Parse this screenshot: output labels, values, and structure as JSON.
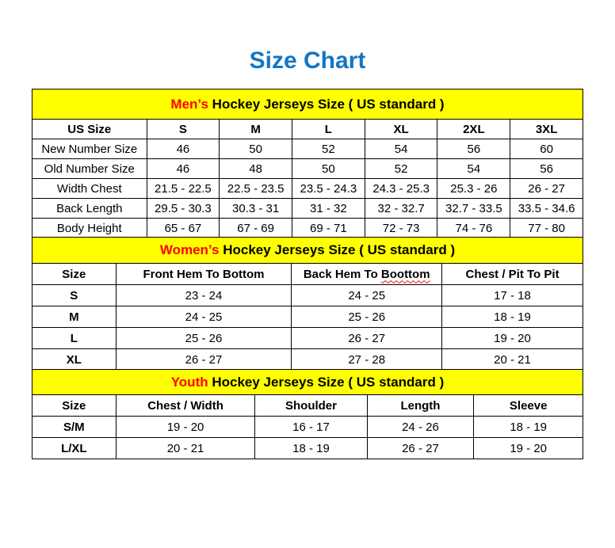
{
  "page_title": "Size Chart",
  "colors": {
    "title_blue": "#1176C5",
    "band_yellow": "#FFFF00",
    "accent_red": "#FF0000",
    "text_black": "#000000"
  },
  "tables": [
    {
      "id": "mens",
      "title_accent": "Men’s",
      "title_rest": " Hockey Jerseys Size ( US standard )",
      "columns": [
        "US Size",
        "S",
        "M",
        "L",
        "XL",
        "2XL",
        "3XL"
      ],
      "col_widths": [
        "20.8%",
        "13.2%",
        "13.2%",
        "13.2%",
        "13.2%",
        "13.2%",
        "13.2%"
      ],
      "bold_first_col": false,
      "rows": [
        [
          "New Number Size",
          "46",
          "50",
          "52",
          "54",
          "56",
          "60"
        ],
        [
          "Old Number Size",
          "46",
          "48",
          "50",
          "52",
          "54",
          "56"
        ],
        [
          "Width Chest",
          "21.5 - 22.5",
          "22.5 - 23.5",
          "23.5 - 24.3",
          "24.3 - 25.3",
          "25.3 - 26",
          "26 - 27"
        ],
        [
          "Back Length",
          "29.5 - 30.3",
          "30.3 - 31",
          "31 - 32",
          "32 - 32.7",
          "32.7 - 33.5",
          "33.5 - 34.6"
        ],
        [
          "Body Height",
          "65 - 67",
          "67 - 69",
          "69 - 71",
          "72 - 73",
          "74 - 76",
          "77 - 80"
        ]
      ]
    },
    {
      "id": "womens",
      "title_accent": "Women’s",
      "title_rest": " Hockey Jerseys Size ( US standard )",
      "columns": [
        "Size",
        "Front Hem To Bottom",
        "Back Hem To Boottom",
        "Chest / Pit To Pit"
      ],
      "col_widths": [
        "15.2%",
        "31.9%",
        "27.3%",
        "25.6%"
      ],
      "bold_first_col": true,
      "spellcheck": {
        "column": 2,
        "word": "Boottom"
      },
      "rows": [
        [
          "S",
          "23 - 24",
          "24 - 25",
          "17 - 18"
        ],
        [
          "M",
          "24 - 25",
          "25 - 26",
          "18 - 19"
        ],
        [
          "L",
          "25 - 26",
          "26 - 27",
          "19 - 20"
        ],
        [
          "XL",
          "26 - 27",
          "27 - 28",
          "20 - 21"
        ]
      ]
    },
    {
      "id": "youth",
      "title_accent": "Youth",
      "title_rest": " Hockey Jerseys Size ( US standard )",
      "columns": [
        "Size",
        "Chest / Width",
        "Shoulder",
        "Length",
        "Sleeve"
      ],
      "col_widths": [
        "15.2%",
        "25.3%",
        "20.3%",
        "19.4%",
        "19.8%"
      ],
      "bold_first_col": true,
      "rows": [
        [
          "S/M",
          "19 - 20",
          "16 - 17",
          "24 - 26",
          "18 - 19"
        ],
        [
          "L/XL",
          "20 - 21",
          "18 - 19",
          "26 - 27",
          "19 - 20"
        ]
      ]
    }
  ]
}
